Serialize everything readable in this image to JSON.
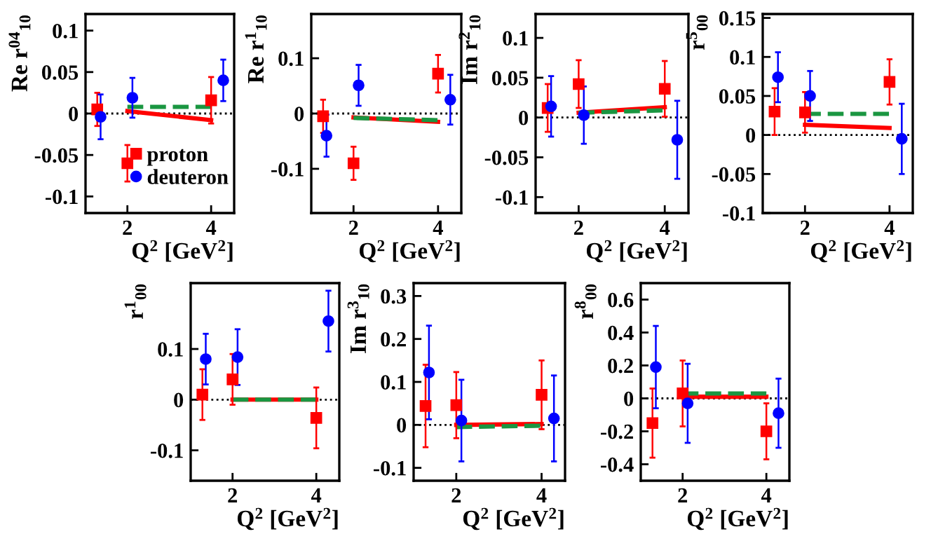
{
  "chart_data": [
    {
      "type": "scatter",
      "ylabel": "Re r$^{04}$$_{10}$",
      "xlabel": "Q$^{2}$ [GeV$^{2}$]",
      "xlim": [
        1,
        4.55
      ],
      "xticks": [
        2,
        4
      ],
      "ylim": [
        -0.12,
        0.12
      ],
      "yticks": [
        -0.1,
        -0.05,
        0,
        0.05,
        0.1
      ],
      "legend": "bottom right",
      "ref_lines": [
        {
          "axis": "y",
          "value": 0,
          "color": "#000000",
          "line_style": "dotted"
        }
      ],
      "series": [
        {
          "name": "proton",
          "type": "scatter",
          "marker": "square",
          "color": "#ff0000",
          "x": [
            1.28,
            2.0,
            4.0
          ],
          "values": [
            0.005,
            -0.06,
            0.016
          ],
          "errors": [
            0.02,
            0.022,
            0.028
          ]
        },
        {
          "name": "deuteron",
          "type": "scatter",
          "marker": "circle",
          "color": "#0000ff",
          "x": [
            1.36,
            2.12,
            4.29
          ],
          "values": [
            -0.004,
            0.019,
            0.04
          ],
          "errors": [
            0.027,
            0.024,
            0.025
          ]
        },
        {
          "type": "line",
          "line_style": "solid",
          "color": "#ff0000",
          "x": [
            2,
            4
          ],
          "values": [
            0.003,
            -0.008
          ]
        },
        {
          "type": "line",
          "line_style": "dashed",
          "color": "#1a9641",
          "x": [
            2,
            4
          ],
          "values": [
            0.008,
            0.008
          ]
        }
      ]
    },
    {
      "type": "scatter",
      "ylabel": "Re r$^{1}$$_{10}$",
      "xlabel": "Q$^{2}$ [GeV$^{2}$]",
      "xlim": [
        1,
        4.55
      ],
      "xticks": [
        2,
        4
      ],
      "ylim": [
        -0.18,
        0.18
      ],
      "yticks": [
        -0.1,
        0,
        0.1
      ],
      "ref_lines": [
        {
          "axis": "y",
          "value": 0,
          "color": "#000000",
          "line_style": "dotted"
        }
      ],
      "series": [
        {
          "type": "scatter",
          "marker": "square",
          "color": "#ff0000",
          "x": [
            1.28,
            2.0,
            4.0
          ],
          "values": [
            -0.005,
            -0.09,
            0.072
          ],
          "errors": [
            0.03,
            0.03,
            0.034
          ]
        },
        {
          "type": "scatter",
          "marker": "circle",
          "color": "#0000ff",
          "x": [
            1.36,
            2.12,
            4.29
          ],
          "values": [
            -0.04,
            0.051,
            0.025
          ],
          "errors": [
            0.038,
            0.037,
            0.045
          ]
        },
        {
          "type": "line",
          "line_style": "solid",
          "color": "#ff0000",
          "x": [
            2,
            4
          ],
          "values": [
            -0.007,
            -0.015
          ]
        },
        {
          "type": "line",
          "line_style": "dashed",
          "color": "#1a9641",
          "x": [
            2,
            4
          ],
          "values": [
            -0.008,
            -0.012
          ]
        }
      ]
    },
    {
      "type": "scatter",
      "ylabel": "Im r$^{2}$$_{10}$",
      "xlabel": "Q$^{2}$ [GeV$^{2}$]",
      "xlim": [
        1,
        4.55
      ],
      "xticks": [
        2,
        4
      ],
      "ylim": [
        -0.12,
        0.13
      ],
      "yticks": [
        -0.1,
        -0.05,
        0,
        0.05,
        0.1
      ],
      "ref_lines": [
        {
          "axis": "y",
          "value": 0,
          "color": "#000000",
          "line_style": "dotted"
        }
      ],
      "series": [
        {
          "type": "scatter",
          "marker": "square",
          "color": "#ff0000",
          "x": [
            1.28,
            2.0,
            4.0
          ],
          "values": [
            0.012,
            0.042,
            0.036
          ],
          "errors": [
            0.03,
            0.03,
            0.035
          ]
        },
        {
          "type": "scatter",
          "marker": "circle",
          "color": "#0000ff",
          "x": [
            1.36,
            2.12,
            4.29
          ],
          "values": [
            0.014,
            0.003,
            -0.028
          ],
          "errors": [
            0.038,
            0.036,
            0.049
          ]
        },
        {
          "type": "line",
          "line_style": "solid",
          "color": "#ff0000",
          "x": [
            2,
            4
          ],
          "values": [
            0.006,
            0.013
          ]
        },
        {
          "type": "line",
          "line_style": "dashed",
          "color": "#1a9641",
          "x": [
            2,
            4
          ],
          "values": [
            0.006,
            0.009
          ]
        }
      ]
    },
    {
      "type": "scatter",
      "ylabel": "r$^{5}$$_{00}$",
      "xlabel": "Q$^{2}$ [GeV$^{2}$]",
      "xlim": [
        1,
        4.55
      ],
      "xticks": [
        2,
        4
      ],
      "ylim": [
        -0.1,
        0.155
      ],
      "yticks": [
        -0.1,
        -0.05,
        0,
        0.05,
        0.1,
        0.15
      ],
      "ref_lines": [
        {
          "axis": "y",
          "value": 0,
          "color": "#000000",
          "line_style": "dotted"
        }
      ],
      "series": [
        {
          "type": "scatter",
          "marker": "square",
          "color": "#ff0000",
          "x": [
            1.28,
            2.0,
            4.0
          ],
          "values": [
            0.03,
            0.029,
            0.068
          ],
          "errors": [
            0.03,
            0.026,
            0.029
          ]
        },
        {
          "type": "scatter",
          "marker": "circle",
          "color": "#0000ff",
          "x": [
            1.36,
            2.12,
            4.29
          ],
          "values": [
            0.074,
            0.05,
            -0.005
          ],
          "errors": [
            0.032,
            0.032,
            0.045
          ]
        },
        {
          "type": "line",
          "line_style": "solid",
          "color": "#ff0000",
          "x": [
            2,
            4
          ],
          "values": [
            0.013,
            0.009
          ]
        },
        {
          "type": "line",
          "line_style": "dashed",
          "color": "#1a9641",
          "x": [
            2,
            4
          ],
          "values": [
            0.027,
            0.027
          ]
        }
      ]
    },
    {
      "type": "scatter",
      "ylabel": "r$^{1}$$_{00}$",
      "xlabel": "Q$^{2}$ [GeV$^{2}$]",
      "xlim": [
        1,
        4.55
      ],
      "xticks": [
        2,
        4
      ],
      "ylim": [
        -0.16,
        0.23
      ],
      "yticks": [
        -0.1,
        0,
        0.1
      ],
      "ref_lines": [
        {
          "axis": "y",
          "value": 0,
          "color": "#000000",
          "line_style": "dotted"
        }
      ],
      "series": [
        {
          "type": "scatter",
          "marker": "square",
          "color": "#ff0000",
          "x": [
            1.28,
            2.0,
            4.0
          ],
          "values": [
            0.01,
            0.04,
            -0.036
          ],
          "errors": [
            0.05,
            0.05,
            0.06
          ]
        },
        {
          "type": "scatter",
          "marker": "circle",
          "color": "#0000ff",
          "x": [
            1.36,
            2.12,
            4.29
          ],
          "values": [
            0.08,
            0.084,
            0.155
          ],
          "errors": [
            0.05,
            0.055,
            0.06
          ]
        },
        {
          "type": "line",
          "line_style": "solid",
          "color": "#ff0000",
          "x": [
            2,
            4
          ],
          "values": [
            0,
            0
          ]
        },
        {
          "type": "line",
          "line_style": "dashed",
          "color": "#1a9641",
          "x": [
            2,
            4
          ],
          "values": [
            0,
            0
          ]
        }
      ]
    },
    {
      "type": "scatter",
      "ylabel": "Im r$^{3}$$_{10}$",
      "xlabel": "Q$^{2}$ [GeV$^{2}$]",
      "xlim": [
        1,
        4.55
      ],
      "xticks": [
        2,
        4
      ],
      "ylim": [
        -0.13,
        0.33
      ],
      "yticks": [
        -0.1,
        0,
        0.1,
        0.2,
        0.3
      ],
      "ref_lines": [
        {
          "axis": "y",
          "value": 0,
          "color": "#000000",
          "line_style": "dotted"
        }
      ],
      "series": [
        {
          "type": "scatter",
          "marker": "square",
          "color": "#ff0000",
          "x": [
            1.28,
            2.0,
            4.0
          ],
          "values": [
            0.044,
            0.046,
            0.07
          ],
          "errors": [
            0.096,
            0.077,
            0.08
          ]
        },
        {
          "type": "scatter",
          "marker": "circle",
          "color": "#0000ff",
          "x": [
            1.36,
            2.12,
            4.29
          ],
          "values": [
            0.122,
            0.01,
            0.015
          ],
          "errors": [
            0.109,
            0.095,
            0.1
          ]
        },
        {
          "type": "line",
          "line_style": "solid",
          "color": "#ff0000",
          "x": [
            2,
            4
          ],
          "values": [
            0,
            0.002
          ]
        },
        {
          "type": "line",
          "line_style": "dashed",
          "color": "#1a9641",
          "x": [
            2,
            4
          ],
          "values": [
            -0.005,
            -0.002
          ]
        }
      ]
    },
    {
      "type": "scatter",
      "ylabel": "r$^{8}$$_{00}$",
      "xlabel": "Q$^{2}$ [GeV$^{2}$]",
      "xlim": [
        1,
        4.55
      ],
      "xticks": [
        2,
        4
      ],
      "ylim": [
        -0.5,
        0.7
      ],
      "yticks": [
        -0.4,
        -0.2,
        0,
        0.2,
        0.4,
        0.6
      ],
      "ref_lines": [
        {
          "axis": "y",
          "value": 0,
          "color": "#000000",
          "line_style": "dotted"
        }
      ],
      "series": [
        {
          "type": "scatter",
          "marker": "square",
          "color": "#ff0000",
          "x": [
            1.28,
            2.0,
            4.0
          ],
          "values": [
            -0.15,
            0.03,
            -0.2
          ],
          "errors": [
            0.21,
            0.2,
            0.17
          ]
        },
        {
          "type": "scatter",
          "marker": "circle",
          "color": "#0000ff",
          "x": [
            1.36,
            2.12,
            4.29
          ],
          "values": [
            0.19,
            -0.03,
            -0.09
          ],
          "errors": [
            0.25,
            0.24,
            0.21
          ]
        },
        {
          "type": "line",
          "line_style": "solid",
          "color": "#ff0000",
          "x": [
            2,
            4
          ],
          "values": [
            0.01,
            0.01
          ]
        },
        {
          "type": "line",
          "line_style": "dashed",
          "color": "#1a9641",
          "x": [
            2,
            4
          ],
          "values": [
            0.03,
            0.03
          ]
        }
      ]
    }
  ]
}
